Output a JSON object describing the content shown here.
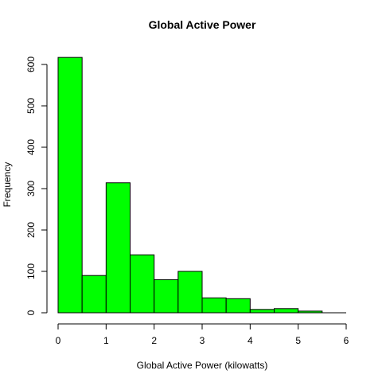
{
  "chart_data": {
    "type": "bar",
    "title": "Global Active Power",
    "xlabel": "Global Active Power (kilowatts)",
    "ylabel": "Frequency",
    "bar_color": "#00ff00",
    "bar_border_color": "#000000",
    "bins": [
      {
        "start": 0.0,
        "end": 0.5,
        "count": 617
      },
      {
        "start": 0.5,
        "end": 1.0,
        "count": 90
      },
      {
        "start": 1.0,
        "end": 1.5,
        "count": 314
      },
      {
        "start": 1.5,
        "end": 2.0,
        "count": 140
      },
      {
        "start": 2.0,
        "end": 2.5,
        "count": 80
      },
      {
        "start": 2.5,
        "end": 3.0,
        "count": 100
      },
      {
        "start": 3.0,
        "end": 3.5,
        "count": 36
      },
      {
        "start": 3.5,
        "end": 4.0,
        "count": 34
      },
      {
        "start": 4.0,
        "end": 4.5,
        "count": 8
      },
      {
        "start": 4.5,
        "end": 5.0,
        "count": 10
      },
      {
        "start": 5.0,
        "end": 5.5,
        "count": 4
      },
      {
        "start": 5.5,
        "end": 6.0,
        "count": 0
      }
    ],
    "xlim": [
      0,
      6
    ],
    "ylim": [
      0,
      600
    ],
    "x_ticks": [
      "0",
      "1",
      "2",
      "3",
      "4",
      "5",
      "6"
    ],
    "y_ticks": [
      "0",
      "100",
      "200",
      "300",
      "400",
      "500",
      "600"
    ],
    "grid": false,
    "legend": "none"
  }
}
